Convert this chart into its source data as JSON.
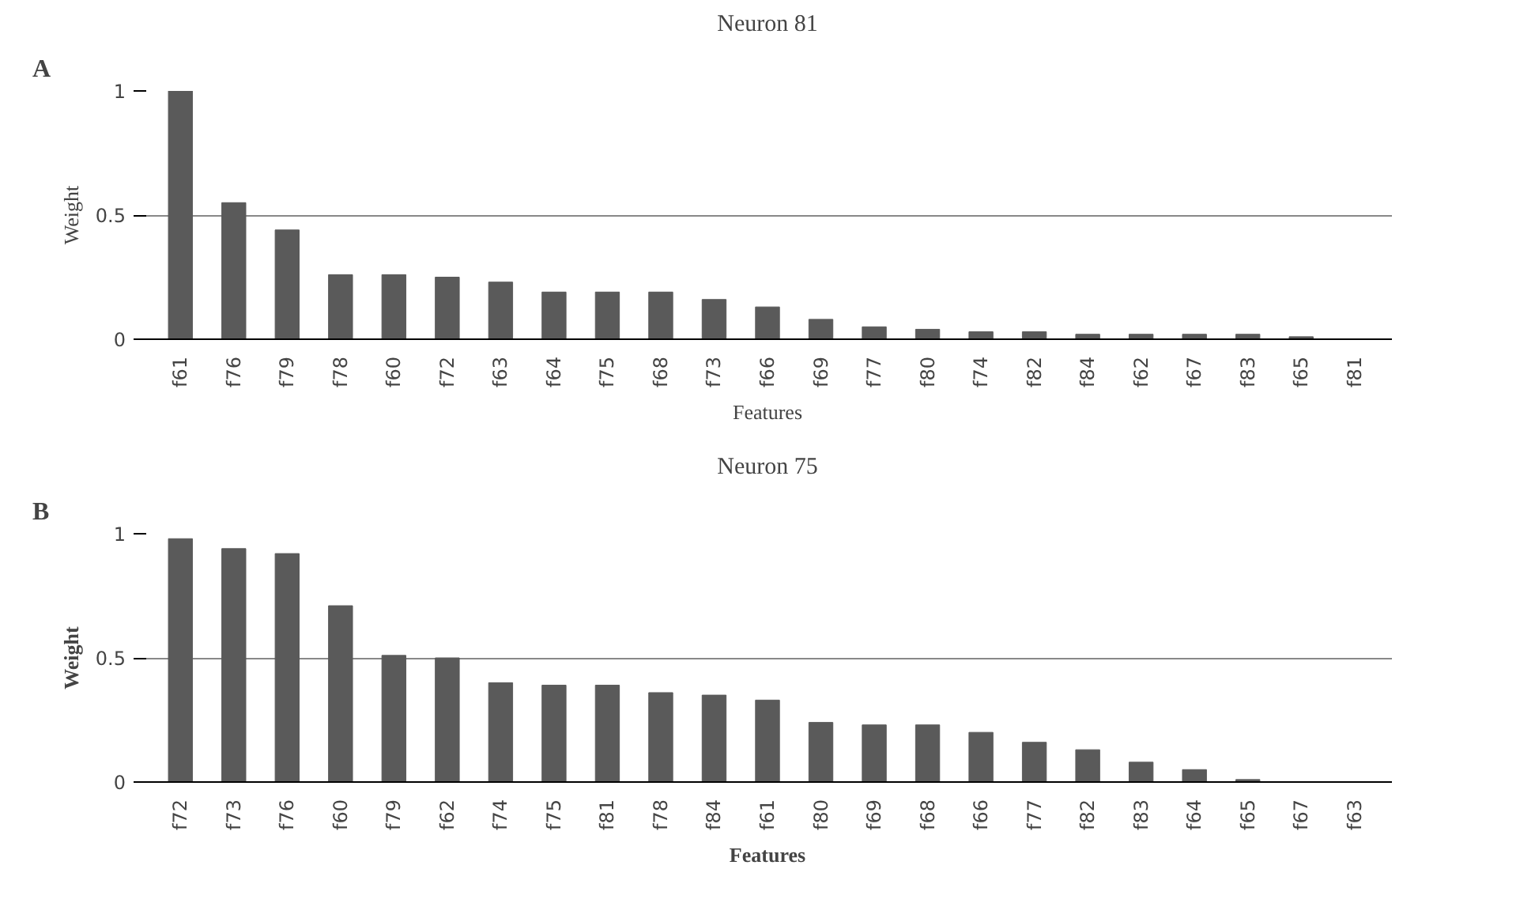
{
  "chart_data": [
    {
      "type": "bar",
      "title": "Neuron 81",
      "xlabel": "Features",
      "ylabel": "Weight",
      "annotations": [
        "A"
      ],
      "color": "#5a5a5a",
      "grid": "y",
      "ylim": [
        0,
        1
      ],
      "yticks": [
        0,
        0.5,
        1
      ],
      "categories": [
        "f61",
        "f76",
        "f79",
        "f78",
        "f60",
        "f72",
        "f63",
        "f64",
        "f75",
        "f68",
        "f73",
        "f66",
        "f69",
        "f77",
        "f80",
        "f74",
        "f82",
        "f84",
        "f62",
        "f67",
        "f83",
        "f65",
        "f81"
      ],
      "values": [
        1.0,
        0.55,
        0.44,
        0.26,
        0.26,
        0.25,
        0.23,
        0.19,
        0.19,
        0.19,
        0.16,
        0.13,
        0.08,
        0.05,
        0.04,
        0.03,
        0.03,
        0.02,
        0.02,
        0.02,
        0.02,
        0.01,
        0.0
      ]
    },
    {
      "type": "bar",
      "title": "Neuron 75",
      "xlabel": "Features",
      "ylabel": "Weight",
      "annotations": [
        "B"
      ],
      "color": "#5a5a5a",
      "grid": "y",
      "ylim": [
        0,
        1
      ],
      "yticks": [
        0,
        0.5,
        1
      ],
      "categories": [
        "f72",
        "f73",
        "f76",
        "f60",
        "f79",
        "f62",
        "f74",
        "f75",
        "f81",
        "f78",
        "f84",
        "f61",
        "f80",
        "f69",
        "f68",
        "f66",
        "f77",
        "f82",
        "f83",
        "f64",
        "f65",
        "f67",
        "f63"
      ],
      "values": [
        0.98,
        0.94,
        0.92,
        0.71,
        0.51,
        0.5,
        0.4,
        0.39,
        0.39,
        0.36,
        0.35,
        0.33,
        0.24,
        0.23,
        0.23,
        0.2,
        0.16,
        0.13,
        0.08,
        0.05,
        0.01,
        0.0,
        0.0
      ]
    }
  ]
}
